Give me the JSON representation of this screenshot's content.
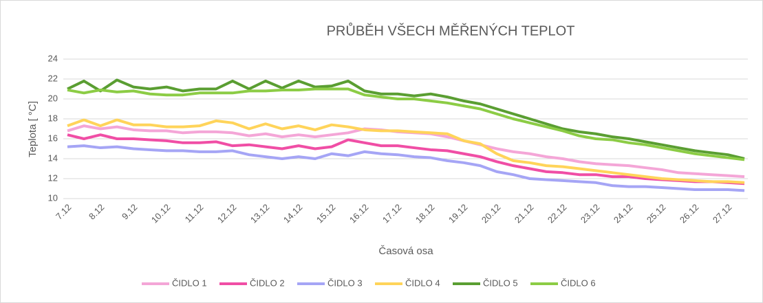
{
  "chart_data": {
    "type": "line",
    "title": "PRŮBĚH VŠECH MĚŘENÝCH TEPLOT",
    "y_label": "Teplota [ °C]",
    "x_label": "Časová osa",
    "categories": [
      "7.12",
      null,
      "8.12",
      null,
      "9.12",
      null,
      "10.12",
      null,
      "11.12",
      null,
      "12.12",
      null,
      "13.12",
      null,
      "14.12",
      null,
      "15.12",
      null,
      "16.12",
      null,
      "17.12",
      null,
      "18.12",
      null,
      "19.12",
      null,
      "20.12",
      null,
      "21.12",
      null,
      "22.12",
      null,
      "23.12",
      null,
      "24.12",
      null,
      "25.12",
      null,
      "26.12",
      null,
      "27.12",
      null
    ],
    "ylim": [
      10,
      24
    ],
    "yticks": [
      10,
      12,
      14,
      16,
      18,
      20,
      22,
      24
    ],
    "grid": true,
    "legend": "bottom",
    "series": [
      {
        "name": "ČIDLO 1",
        "color": "#f4a6d7",
        "values": [
          16.8,
          17.3,
          17.0,
          17.2,
          16.9,
          16.8,
          16.8,
          16.6,
          16.7,
          16.7,
          16.6,
          16.3,
          16.5,
          16.2,
          16.4,
          16.2,
          16.4,
          16.6,
          17.0,
          16.9,
          16.7,
          16.6,
          16.5,
          16.2,
          15.8,
          15.4,
          15.0,
          14.7,
          14.5,
          14.2,
          14.0,
          13.7,
          13.5,
          13.4,
          13.3,
          13.1,
          12.9,
          12.6,
          12.5,
          12.4,
          12.3,
          12.2
        ]
      },
      {
        "name": "ČIDLO 2",
        "color": "#f04ea5",
        "values": [
          16.4,
          16.0,
          16.4,
          16.0,
          16.0,
          15.9,
          15.8,
          15.6,
          15.6,
          15.7,
          15.3,
          15.4,
          15.2,
          15.0,
          15.3,
          15.0,
          15.2,
          15.9,
          15.6,
          15.3,
          15.3,
          15.1,
          14.9,
          14.8,
          14.5,
          14.2,
          13.7,
          13.3,
          13.0,
          12.7,
          12.6,
          12.4,
          12.4,
          12.2,
          12.2,
          12.0,
          11.9,
          11.8,
          11.7,
          11.7,
          11.6,
          11.5
        ]
      },
      {
        "name": "ČIDLO 3",
        "color": "#a5a5f5",
        "values": [
          15.2,
          15.3,
          15.1,
          15.2,
          15.0,
          14.9,
          14.8,
          14.8,
          14.7,
          14.7,
          14.8,
          14.4,
          14.2,
          14.0,
          14.2,
          14.0,
          14.5,
          14.3,
          14.7,
          14.5,
          14.4,
          14.2,
          14.1,
          13.8,
          13.6,
          13.3,
          12.7,
          12.4,
          12.0,
          11.9,
          11.8,
          11.7,
          11.6,
          11.3,
          11.2,
          11.2,
          11.1,
          11.0,
          10.9,
          10.9,
          10.9,
          10.8
        ]
      },
      {
        "name": "ČIDLO 4",
        "color": "#ffd45a",
        "values": [
          17.3,
          17.9,
          17.3,
          17.9,
          17.4,
          17.4,
          17.2,
          17.2,
          17.3,
          17.8,
          17.6,
          17.0,
          17.5,
          17.0,
          17.3,
          16.9,
          17.4,
          17.2,
          16.9,
          16.8,
          16.8,
          16.7,
          16.6,
          16.5,
          15.8,
          15.5,
          14.5,
          13.8,
          13.6,
          13.3,
          13.2,
          13.0,
          12.8,
          12.6,
          12.4,
          12.2,
          12.0,
          11.9,
          11.8,
          11.7,
          11.7,
          11.6
        ]
      },
      {
        "name": "ČIDLO 5",
        "color": "#5a9e32",
        "values": [
          21.0,
          21.8,
          20.8,
          21.9,
          21.2,
          21.0,
          21.2,
          20.8,
          21.0,
          21.0,
          21.8,
          21.0,
          21.8,
          21.1,
          21.8,
          21.2,
          21.3,
          21.8,
          20.8,
          20.5,
          20.5,
          20.3,
          20.5,
          20.2,
          19.8,
          19.5,
          19.0,
          18.5,
          18.0,
          17.5,
          17.0,
          16.7,
          16.5,
          16.2,
          16.0,
          15.7,
          15.4,
          15.1,
          14.8,
          14.6,
          14.4,
          14.0
        ]
      },
      {
        "name": "ČIDLO 6",
        "color": "#8ccc45",
        "values": [
          20.9,
          20.6,
          20.9,
          20.7,
          20.8,
          20.5,
          20.4,
          20.4,
          20.6,
          20.6,
          20.6,
          20.8,
          20.8,
          20.9,
          20.9,
          21.0,
          21.0,
          21.0,
          20.4,
          20.2,
          20.0,
          20.0,
          19.8,
          19.6,
          19.3,
          19.0,
          18.5,
          18.0,
          17.6,
          17.2,
          16.8,
          16.3,
          16.0,
          15.9,
          15.6,
          15.4,
          15.1,
          14.8,
          14.5,
          14.3,
          14.1,
          13.9
        ]
      }
    ]
  }
}
